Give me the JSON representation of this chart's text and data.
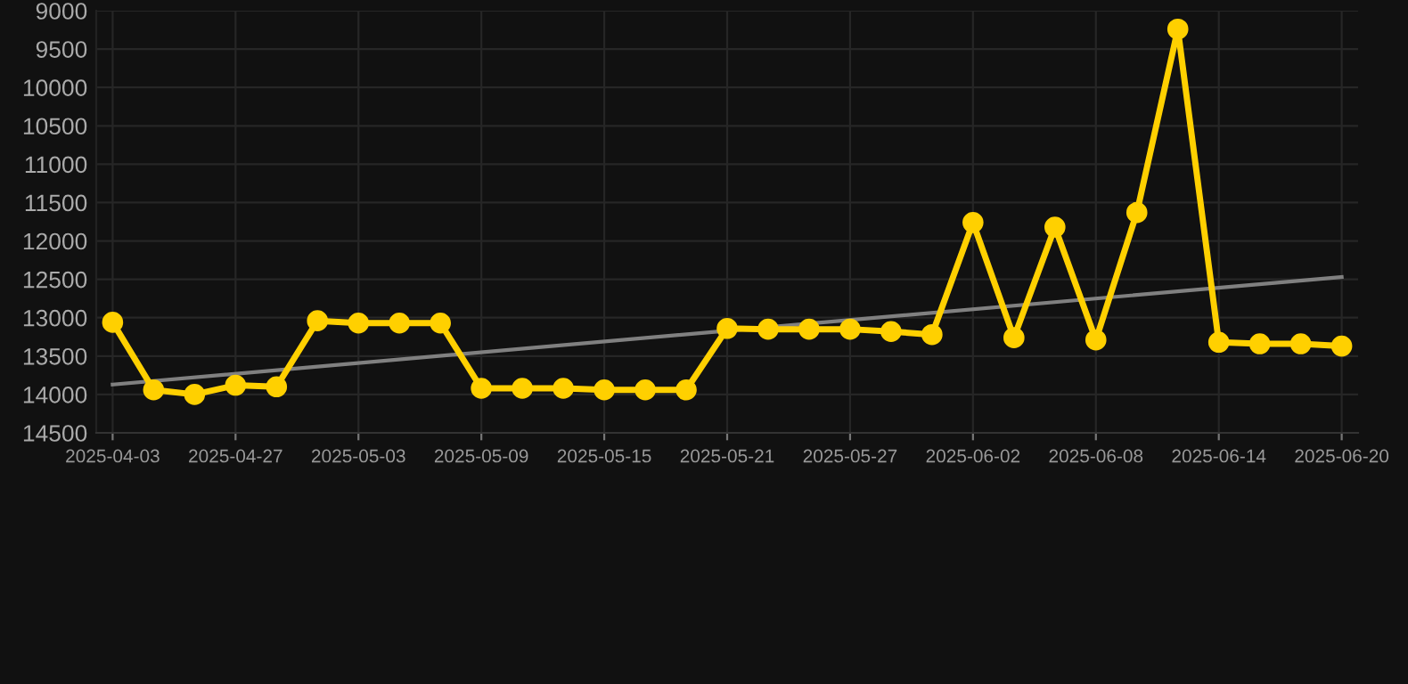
{
  "chart_data": {
    "type": "line",
    "categories": [
      "2025-04-03",
      null,
      null,
      "2025-04-27",
      null,
      null,
      "2025-05-03",
      null,
      null,
      "2025-05-09",
      null,
      null,
      "2025-05-15",
      null,
      null,
      "2025-05-21",
      null,
      null,
      "2025-05-27",
      null,
      null,
      "2025-06-02",
      null,
      null,
      "2025-06-08",
      null,
      null,
      "2025-06-14",
      null,
      null,
      "2025-06-20"
    ],
    "series": [
      {
        "color": "#ffd000",
        "marker": "circle",
        "values": [
          13060,
          13940,
          14000,
          13880,
          13900,
          13040,
          13070,
          13070,
          13070,
          13920,
          13920,
          13920,
          13940,
          13940,
          13940,
          13140,
          13150,
          13150,
          13150,
          13180,
          13220,
          11760,
          13260,
          11820,
          13290,
          11630,
          9240,
          13320,
          13340,
          13340,
          13370
        ]
      },
      {
        "type": "line",
        "color": "#808080",
        "marker": "none",
        "values": [
          13870,
          null,
          null,
          null,
          null,
          null,
          null,
          null,
          null,
          null,
          null,
          null,
          null,
          null,
          null,
          null,
          null,
          null,
          null,
          null,
          null,
          null,
          null,
          null,
          null,
          null,
          null,
          null,
          null,
          null,
          12470
        ]
      }
    ],
    "ylim": [
      14500,
      9000
    ],
    "yticks": [
      9000,
      9500,
      10000,
      10500,
      11000,
      11500,
      12000,
      12500,
      13000,
      13500,
      14000,
      14500
    ],
    "grid": true
  }
}
